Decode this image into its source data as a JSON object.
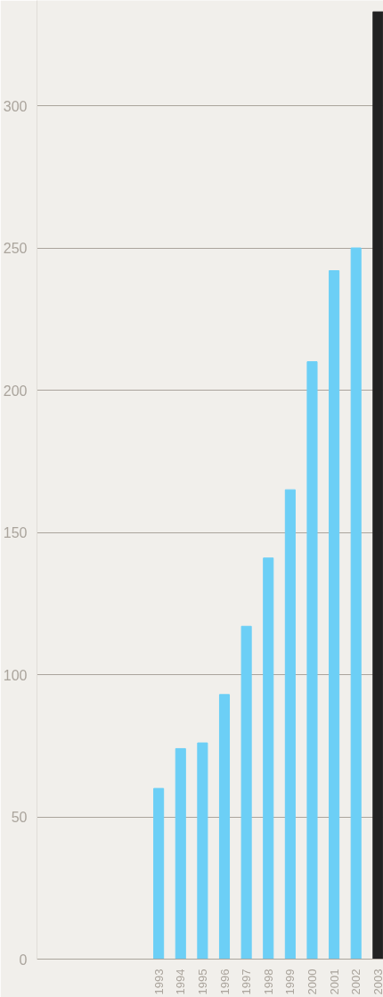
{
  "chart_data": {
    "type": "bar",
    "categories": [
      null,
      null,
      null,
      null,
      null,
      "1993",
      "1994",
      "1995",
      "1996",
      "1997",
      "1998",
      "1999",
      "2000",
      "2001",
      "2002",
      "2003"
    ],
    "values": [
      null,
      null,
      null,
      null,
      null,
      60,
      74,
      76,
      93,
      117,
      141,
      165,
      210,
      242,
      250,
      333
    ],
    "colors": [
      "#6ccff6",
      "#6ccff6",
      "#6ccff6",
      "#6ccff6",
      "#6ccff6",
      "#6ccff6",
      "#6ccff6",
      "#6ccff6",
      "#6ccff6",
      "#6ccff6",
      "#6ccff6",
      "#6ccff6",
      "#6ccff6",
      "#6ccff6",
      "#6ccff6",
      "#222222"
    ],
    "ylim": [
      0,
      337
    ],
    "yticks": [
      0,
      50,
      100,
      150,
      200,
      250,
      300
    ],
    "grid": "y"
  }
}
